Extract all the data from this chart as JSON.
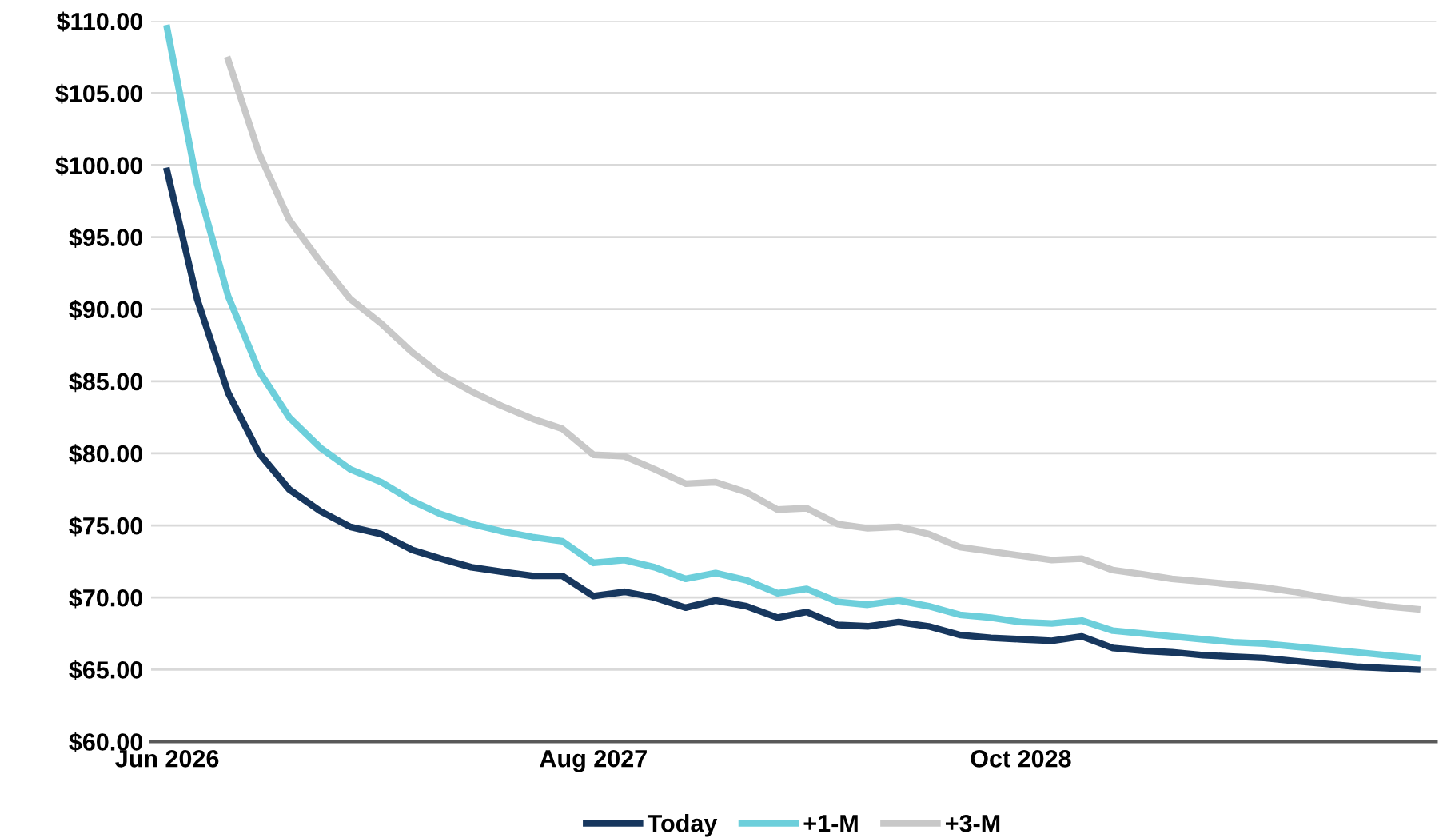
{
  "chart_data": {
    "type": "line",
    "x": [
      "2026-06",
      "2026-07",
      "2026-08",
      "2026-09",
      "2026-10",
      "2026-11",
      "2026-12",
      "2027-01",
      "2027-02",
      "2027-03",
      "2027-04",
      "2027-05",
      "2027-06",
      "2027-07",
      "2027-08",
      "2027-09",
      "2027-10",
      "2027-11",
      "2027-12",
      "2028-01",
      "2028-02",
      "2028-03",
      "2028-04",
      "2028-05",
      "2028-06",
      "2028-07",
      "2028-08",
      "2028-09",
      "2028-10",
      "2028-11",
      "2028-12",
      "2029-01",
      "2029-02",
      "2029-03",
      "2029-04",
      "2029-05",
      "2029-06",
      "2029-07",
      "2029-08",
      "2029-09",
      "2029-10",
      "2029-11"
    ],
    "series": [
      {
        "name": "Today",
        "color": "#17375e",
        "values": [
          99.6,
          90.7,
          84.2,
          80.0,
          77.5,
          76.0,
          74.9,
          74.4,
          73.3,
          72.7,
          72.1,
          71.8,
          71.5,
          71.5,
          70.1,
          70.4,
          70.0,
          69.3,
          69.8,
          69.4,
          68.6,
          69.0,
          68.1,
          68.0,
          68.3,
          68.0,
          67.4,
          67.2,
          67.1,
          67.0,
          67.3,
          66.5,
          66.3,
          66.2,
          66.0,
          65.9,
          65.8,
          65.6,
          65.4,
          65.2,
          65.1,
          65.0
        ]
      },
      {
        "name": "+1-M",
        "color": "#6dcfdb",
        "values": [
          109.5,
          98.7,
          90.9,
          85.7,
          82.5,
          80.4,
          78.9,
          78.0,
          76.7,
          75.8,
          75.1,
          74.6,
          74.2,
          73.9,
          72.4,
          72.6,
          72.1,
          71.3,
          71.7,
          71.2,
          70.3,
          70.6,
          69.7,
          69.5,
          69.8,
          69.4,
          68.8,
          68.6,
          68.3,
          68.2,
          68.4,
          67.7,
          67.5,
          67.3,
          67.1,
          66.9,
          66.8,
          66.6,
          66.4,
          66.2,
          66.0,
          65.8
        ]
      },
      {
        "name": "+3-M",
        "color": "#c8c8c8",
        "values": [
          null,
          null,
          107.3,
          100.8,
          96.2,
          93.3,
          90.7,
          89.0,
          87.0,
          85.5,
          84.3,
          83.3,
          82.4,
          81.7,
          79.9,
          79.8,
          78.9,
          77.9,
          78.0,
          77.3,
          76.1,
          76.2,
          75.1,
          74.8,
          74.9,
          74.4,
          73.5,
          73.2,
          72.9,
          72.6,
          72.7,
          71.9,
          71.6,
          71.3,
          71.1,
          70.9,
          70.7,
          70.4,
          70.0,
          69.7,
          69.4,
          69.2
        ]
      }
    ],
    "xlim": [
      "2026-05-16",
      "2029-11-20"
    ],
    "xticks": [
      {
        "value": "2026-06",
        "label": "Jun 2026"
      },
      {
        "value": "2027-08",
        "label": "Aug 2027"
      },
      {
        "value": "2028-10",
        "label": "Oct 2028"
      }
    ],
    "ylim": [
      60,
      110
    ],
    "yticks": [
      {
        "value": 60,
        "label": "$60.00"
      },
      {
        "value": 65,
        "label": "$65.00"
      },
      {
        "value": 70,
        "label": "$70.00"
      },
      {
        "value": 75,
        "label": "$75.00"
      },
      {
        "value": 80,
        "label": "$80.00"
      },
      {
        "value": 85,
        "label": "$85.00"
      },
      {
        "value": 90,
        "label": "$90.00"
      },
      {
        "value": 95,
        "label": "$95.00"
      },
      {
        "value": 100,
        "label": "$100.00"
      },
      {
        "value": 105,
        "label": "$105.00"
      },
      {
        "value": 110,
        "label": "$110.00"
      }
    ],
    "grid": "y",
    "legend": "bottom",
    "marker": "none",
    "line_style": "solid"
  }
}
